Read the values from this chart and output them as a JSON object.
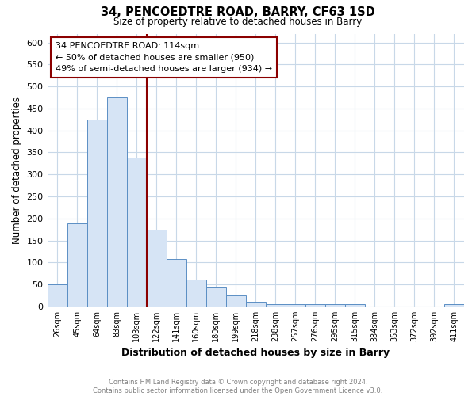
{
  "title_line1": "34, PENCOEDTRE ROAD, BARRY, CF63 1SD",
  "title_line2": "Size of property relative to detached houses in Barry",
  "xlabel": "Distribution of detached houses by size in Barry",
  "ylabel": "Number of detached properties",
  "categories": [
    "26sqm",
    "45sqm",
    "64sqm",
    "83sqm",
    "103sqm",
    "122sqm",
    "141sqm",
    "160sqm",
    "180sqm",
    "199sqm",
    "218sqm",
    "238sqm",
    "257sqm",
    "276sqm",
    "295sqm",
    "315sqm",
    "334sqm",
    "353sqm",
    "372sqm",
    "392sqm",
    "411sqm"
  ],
  "values": [
    50,
    188,
    425,
    475,
    338,
    175,
    108,
    60,
    43,
    25,
    11,
    5,
    5,
    5,
    5,
    5,
    0,
    0,
    0,
    0,
    5
  ],
  "bar_color": "#d6e4f5",
  "bar_edge_color": "#5b8ec4",
  "vline_color": "#8b0000",
  "annotation_title": "34 PENCOEDTRE ROAD: 114sqm",
  "annotation_line1": "← 50% of detached houses are smaller (950)",
  "annotation_line2": "49% of semi-detached houses are larger (934) →",
  "annotation_box_color": "#ffffff",
  "annotation_box_edge": "#8b0000",
  "ylim": [
    0,
    620
  ],
  "yticks": [
    0,
    50,
    100,
    150,
    200,
    250,
    300,
    350,
    400,
    450,
    500,
    550,
    600
  ],
  "footnote_line1": "Contains HM Land Registry data © Crown copyright and database right 2024.",
  "footnote_line2": "Contains public sector information licensed under the Open Government Licence v3.0.",
  "footnote_color": "#808080",
  "background_color": "#ffffff",
  "grid_color": "#c8d8e8"
}
